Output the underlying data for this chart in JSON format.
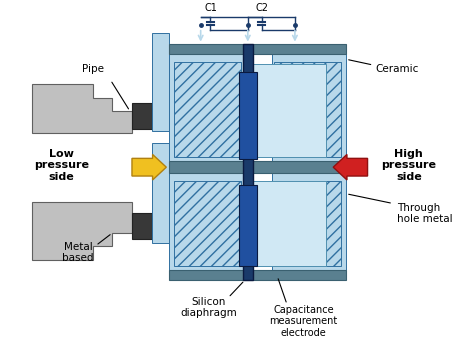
{
  "bg_color": "#ffffff",
  "light_blue": "#b8d8ea",
  "light_blue2": "#d0e8f4",
  "mid_blue": "#6090b0",
  "dark_blue": "#1a3a6a",
  "blue_strip": "#4a7090",
  "gray": "#c0c0c0",
  "gray_dark": "#909090",
  "dark_gray": "#505050",
  "darker_gray": "#383838",
  "yellow": "#f0c020",
  "yellow_edge": "#b08010",
  "red_arr": "#d02020",
  "red_edge": "#901010",
  "wire_color": "#1a3a6a",
  "labels": {
    "pipe": "Pipe",
    "low_pressure": "Low\npressure\nside",
    "high_pressure": "High\npressure\nside",
    "metal_based": "Metal\nbased",
    "silicon_diaphragm": "Silicon\ndiaphragm",
    "capacitance": "Capacitance\nmeasurement\nelectrode",
    "through_hole": "Through\nhole metal",
    "ceramic": "Ceramic",
    "c1": "C1",
    "c2": "C2"
  }
}
